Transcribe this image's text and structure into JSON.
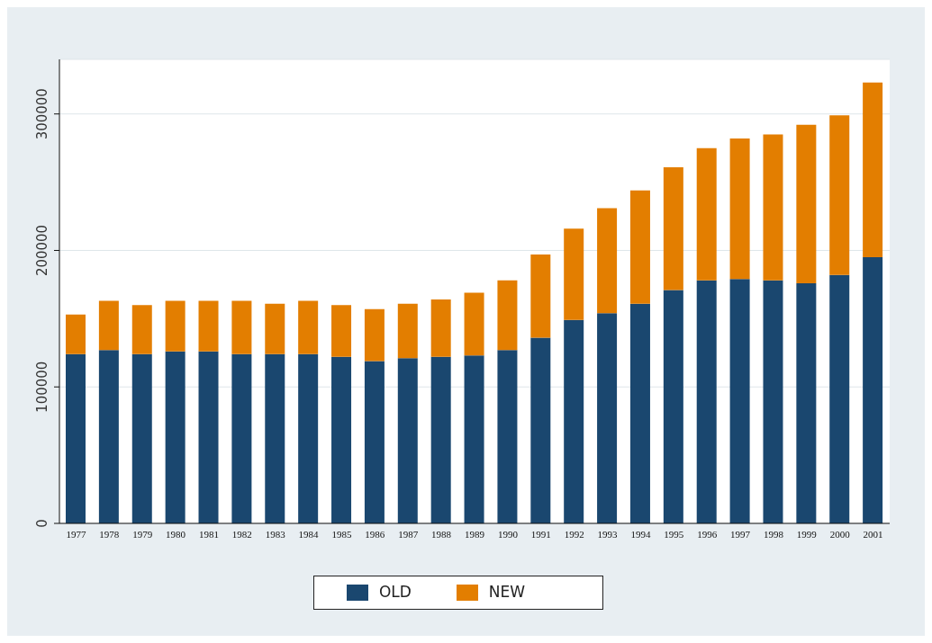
{
  "chart_data": {
    "type": "bar",
    "stacked": true,
    "categories": [
      "1977",
      "1978",
      "1979",
      "1980",
      "1981",
      "1982",
      "1983",
      "1984",
      "1985",
      "1986",
      "1987",
      "1988",
      "1989",
      "1990",
      "1991",
      "1992",
      "1993",
      "1994",
      "1995",
      "1996",
      "1997",
      "1998",
      "1999",
      "2000",
      "2001"
    ],
    "series": [
      {
        "name": "OLD",
        "color": "#1a476f",
        "values": [
          124000,
          127000,
          124000,
          126000,
          126000,
          124000,
          124000,
          124000,
          122000,
          119000,
          121000,
          122000,
          123000,
          127000,
          136000,
          149000,
          154000,
          161000,
          171000,
          178000,
          179000,
          178000,
          176000,
          182000,
          195000
        ]
      },
      {
        "name": "NEW",
        "color": "#e37e00",
        "values": [
          29000,
          36000,
          36000,
          37000,
          37000,
          39000,
          37000,
          39000,
          38000,
          38000,
          40000,
          42000,
          46000,
          51000,
          61000,
          67000,
          77000,
          83000,
          90000,
          97000,
          103000,
          107000,
          116000,
          117000,
          128000
        ]
      }
    ],
    "ylim": [
      0,
      340000
    ],
    "yticks": [
      0,
      100000,
      200000,
      300000
    ],
    "grid": "y",
    "legend": "bottom"
  }
}
